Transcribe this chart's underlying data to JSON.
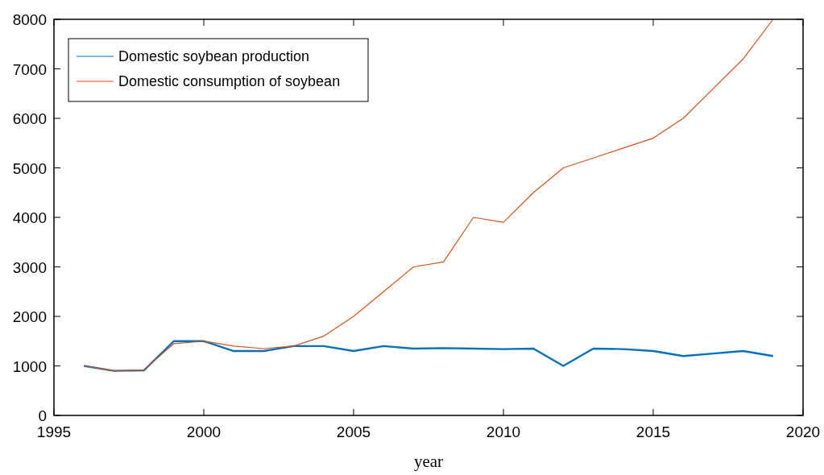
{
  "chart_data": {
    "type": "line",
    "xlabel": "year",
    "x": [
      1996,
      1997,
      1998,
      1999,
      2000,
      2001,
      2002,
      2003,
      2004,
      2005,
      2006,
      2007,
      2008,
      2009,
      2010,
      2011,
      2012,
      2013,
      2014,
      2015,
      2016,
      2017,
      2018,
      2019
    ],
    "series": [
      {
        "name": "Domestic soybean production",
        "color": "#0072bd",
        "values": [
          1000,
          900,
          910,
          1500,
          1500,
          1300,
          1300,
          1400,
          1400,
          1300,
          1400,
          1350,
          1360,
          1350,
          1340,
          1350,
          1000,
          1350,
          1340,
          1300,
          1200,
          1250,
          1300,
          1200
        ]
      },
      {
        "name": "Domestic consumption of soybean",
        "color": "#d95319",
        "values": [
          1000,
          900,
          920,
          1450,
          1500,
          1400,
          1350,
          1400,
          1600,
          2000,
          2500,
          3000,
          3100,
          4000,
          3900,
          4500,
          5000,
          5200,
          5400,
          5600,
          6000,
          6600,
          7200,
          8000
        ]
      }
    ],
    "xlim": [
      1995,
      2020
    ],
    "xticks": [
      1995,
      2000,
      2005,
      2010,
      2015,
      2020
    ],
    "ylim": [
      0,
      8000
    ],
    "yticks": [
      0,
      1000,
      2000,
      3000,
      4000,
      5000,
      6000,
      7000,
      8000
    ],
    "legend": "top left",
    "grid": false,
    "marker": "none",
    "line_style": "solid"
  }
}
